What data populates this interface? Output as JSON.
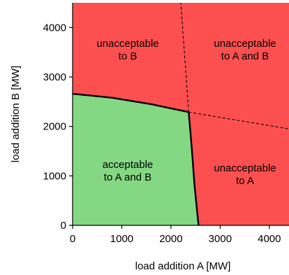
{
  "chart_data": {
    "type": "area",
    "xlabel": "load addition A [MW]",
    "ylabel": "load addition B [MW]",
    "xlim": [
      0,
      4400
    ],
    "ylim": [
      0,
      4500
    ],
    "x_ticks": [
      "0",
      "1000",
      "2000",
      "3000",
      "4000"
    ],
    "y_ticks": [
      "0",
      "1000",
      "2000",
      "3000",
      "4000"
    ],
    "x_tick_values": [
      0,
      1000,
      2000,
      3000,
      4000
    ],
    "y_tick_values": [
      0,
      1000,
      2000,
      3000,
      4000
    ],
    "grid": false,
    "regions": [
      {
        "label": "acceptable\nto A and B",
        "color": "#84d883"
      },
      {
        "label": "unacceptable\nto B",
        "color": "#fc5050"
      },
      {
        "label": "unacceptable\nto A and B",
        "color": "#fc5050"
      },
      {
        "label": "unacceptable\nto A",
        "color": "#fc5050"
      }
    ],
    "boundaries": {
      "limit_B": [
        [
          0,
          2660
        ],
        [
          800,
          2580
        ],
        [
          1600,
          2450
        ],
        [
          2360,
          2290
        ]
      ],
      "limit_A": [
        [
          2360,
          2290
        ],
        [
          2420,
          1600
        ],
        [
          2480,
          800
        ],
        [
          2560,
          0
        ]
      ],
      "extension_B_dashed": [
        [
          2360,
          2290
        ],
        [
          4400,
          1950
        ]
      ],
      "extension_A_dashed": [
        [
          2360,
          2290
        ],
        [
          2200,
          4500
        ]
      ]
    },
    "colors": {
      "acceptable": "#84d883",
      "unacceptable": "#fc5050"
    }
  }
}
